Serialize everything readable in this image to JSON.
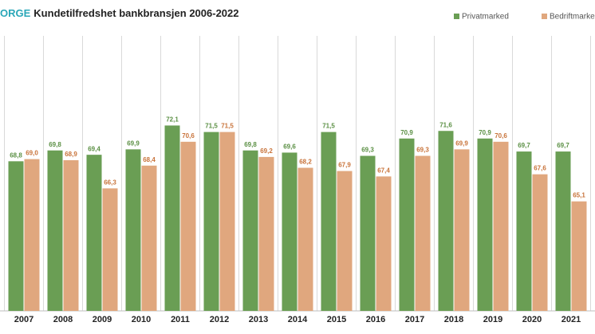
{
  "chart_data": {
    "type": "bar",
    "title_prefix": "ORGE",
    "title": "Kundetilfredshet bankbransjen 2006-2022",
    "categories": [
      "2007",
      "2008",
      "2009",
      "2010",
      "2011",
      "2012",
      "2013",
      "2014",
      "2015",
      "2016",
      "2017",
      "2018",
      "2019",
      "2020",
      "2021"
    ],
    "series": [
      {
        "name": "Privatmarked",
        "color": "#6a9e54",
        "label_color": "#5a8f43",
        "values": [
          68.8,
          69.8,
          69.4,
          69.9,
          72.1,
          71.5,
          69.8,
          69.6,
          71.5,
          69.3,
          70.9,
          71.6,
          70.9,
          69.7,
          69.7
        ],
        "value_labels": [
          "68,8",
          "69,8",
          "69,4",
          "69,9",
          "72,1",
          "71,5",
          "69,8",
          "69,6",
          "71,5",
          "69,3",
          "70,9",
          "71,6",
          "70,9",
          "69,7",
          "69,7"
        ]
      },
      {
        "name": "Bedriftmarke",
        "color": "#e0a77e",
        "label_color": "#c8733a",
        "values": [
          69.0,
          68.9,
          66.3,
          68.4,
          70.6,
          71.5,
          69.2,
          68.2,
          67.9,
          67.4,
          69.3,
          69.9,
          70.6,
          67.6,
          65.1
        ],
        "value_labels": [
          "69,0",
          "68,9",
          "66,3",
          "68,4",
          "70,6",
          "71,5",
          "69,2",
          "68,2",
          "67,9",
          "67,4",
          "69,3",
          "69,9",
          "70,6",
          "67,6",
          "65,1"
        ]
      }
    ],
    "ylim": [
      55,
      80
    ]
  }
}
